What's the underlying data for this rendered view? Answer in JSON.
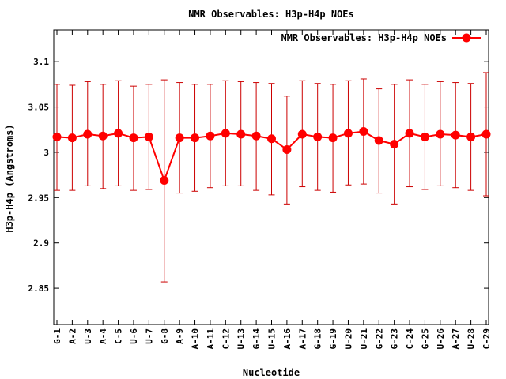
{
  "chart_data": {
    "type": "line",
    "title": "NMR Observables: H3p-H4p NOEs",
    "xlabel": "Nucleotide",
    "ylabel": "H3p-H4p (Angstroms)",
    "ylim": [
      2.81,
      3.135
    ],
    "yticks": [
      2.85,
      2.9,
      2.95,
      3,
      3.05,
      3.1
    ],
    "ytick_labels": [
      "2.85",
      "2.9",
      "2.95",
      "3",
      "3.05",
      "3.1"
    ],
    "grid": false,
    "legend_position": "top-right",
    "colors": {
      "series": "#ff0000",
      "errorbar": "#cc0000",
      "axis": "#000000"
    },
    "categories": [
      "G-1",
      "A-2",
      "U-3",
      "A-4",
      "C-5",
      "U-6",
      "U-7",
      "G-8",
      "A-9",
      "A-10",
      "A-11",
      "C-12",
      "U-13",
      "G-14",
      "U-15",
      "A-16",
      "A-17",
      "G-18",
      "G-19",
      "U-20",
      "U-21",
      "G-22",
      "G-23",
      "C-24",
      "G-25",
      "U-26",
      "A-27",
      "U-28",
      "C-29"
    ],
    "series": [
      {
        "name": "NMR Observables: H3p-H4p NOEs",
        "values": [
          3.017,
          3.016,
          3.02,
          3.018,
          3.021,
          3.016,
          3.017,
          2.969,
          3.016,
          3.016,
          3.018,
          3.021,
          3.02,
          3.018,
          3.015,
          3.003,
          3.02,
          3.017,
          3.016,
          3.021,
          3.023,
          3.013,
          3.009,
          3.021,
          3.017,
          3.02,
          3.019,
          3.017,
          3.02
        ],
        "err_low": [
          2.958,
          2.958,
          2.963,
          2.96,
          2.963,
          2.958,
          2.959,
          2.857,
          2.955,
          2.957,
          2.961,
          2.963,
          2.963,
          2.958,
          2.953,
          2.943,
          2.962,
          2.958,
          2.956,
          2.964,
          2.965,
          2.955,
          2.943,
          2.962,
          2.959,
          2.963,
          2.961,
          2.958,
          2.952
        ],
        "err_high": [
          3.075,
          3.074,
          3.078,
          3.075,
          3.079,
          3.073,
          3.075,
          3.08,
          3.077,
          3.075,
          3.075,
          3.079,
          3.078,
          3.077,
          3.076,
          3.062,
          3.079,
          3.076,
          3.075,
          3.079,
          3.081,
          3.07,
          3.075,
          3.08,
          3.075,
          3.078,
          3.077,
          3.076,
          3.088
        ]
      }
    ]
  }
}
